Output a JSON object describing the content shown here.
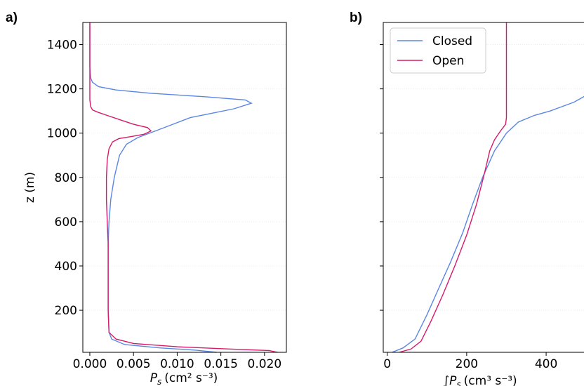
{
  "colors": {
    "closed": "#5b86e5",
    "open": "#d61a6a"
  },
  "chart_data": [
    {
      "panel": "a)",
      "type": "line",
      "xlabel_sym": "P",
      "xlabel_sub": "s",
      "xlabel_unit": "(cm² s⁻³)",
      "ylabel": "z (m)",
      "xlim": [
        -0.0008,
        0.0225
      ],
      "ylim": [
        10,
        1500
      ],
      "xticks": [
        0.0,
        0.005,
        0.01,
        0.015,
        0.02
      ],
      "xtick_labels": [
        "0.000",
        "0.005",
        "0.010",
        "0.015",
        "0.020"
      ],
      "yticks": [
        200,
        400,
        600,
        800,
        1000,
        1200,
        1400
      ],
      "ytick_labels": [
        "200",
        "400",
        "600",
        "800",
        "1000",
        "1200",
        "1400"
      ],
      "grid": true,
      "series": [
        {
          "name": "Closed",
          "points": [
            [
              0.0145,
              10
            ],
            [
              0.012,
              20
            ],
            [
              0.008,
              30
            ],
            [
              0.004,
              45
            ],
            [
              0.0025,
              70
            ],
            [
              0.0022,
              100
            ],
            [
              0.0021,
              200
            ],
            [
              0.0021,
              300
            ],
            [
              0.0021,
              400
            ],
            [
              0.0021,
              500
            ],
            [
              0.0022,
              600
            ],
            [
              0.0024,
              700
            ],
            [
              0.0028,
              800
            ],
            [
              0.0034,
              900
            ],
            [
              0.0042,
              950
            ],
            [
              0.0055,
              980
            ],
            [
              0.0075,
              1010
            ],
            [
              0.0095,
              1040
            ],
            [
              0.0115,
              1070
            ],
            [
              0.014,
              1090
            ],
            [
              0.0165,
              1110
            ],
            [
              0.0185,
              1135
            ],
            [
              0.0178,
              1150
            ],
            [
              0.013,
              1165
            ],
            [
              0.007,
              1180
            ],
            [
              0.003,
              1195
            ],
            [
              0.001,
              1210
            ],
            [
              0.0003,
              1230
            ],
            [
              0.0001,
              1250
            ],
            [
              0.0,
              1300
            ],
            [
              0.0,
              1500
            ]
          ]
        },
        {
          "name": "Open",
          "points": [
            [
              0.0215,
              10
            ],
            [
              0.0205,
              18
            ],
            [
              0.016,
              25
            ],
            [
              0.01,
              35
            ],
            [
              0.005,
              50
            ],
            [
              0.003,
              70
            ],
            [
              0.0022,
              100
            ],
            [
              0.0021,
              200
            ],
            [
              0.0021,
              300
            ],
            [
              0.0021,
              400
            ],
            [
              0.0021,
              500
            ],
            [
              0.002,
              600
            ],
            [
              0.0019,
              700
            ],
            [
              0.0019,
              800
            ],
            [
              0.002,
              880
            ],
            [
              0.0022,
              930
            ],
            [
              0.0026,
              960
            ],
            [
              0.0033,
              975
            ],
            [
              0.0048,
              985
            ],
            [
              0.0062,
              995
            ],
            [
              0.007,
              1010
            ],
            [
              0.0066,
              1025
            ],
            [
              0.005,
              1040
            ],
            [
              0.0035,
              1060
            ],
            [
              0.002,
              1080
            ],
            [
              0.0009,
              1095
            ],
            [
              0.0003,
              1105
            ],
            [
              0.0001,
              1120
            ],
            [
              0.0,
              1150
            ],
            [
              0.0,
              1500
            ]
          ]
        }
      ]
    },
    {
      "panel": "b)",
      "type": "line",
      "xlabel_sym": "∫P",
      "xlabel_sub": "s",
      "xlabel_unit": "(cm³ s⁻³)",
      "ylabel": "",
      "xlim": [
        -10,
        520
      ],
      "ylim": [
        10,
        1500
      ],
      "xticks": [
        0,
        200,
        400
      ],
      "xtick_labels": [
        "0",
        "200",
        "400"
      ],
      "yticks": [
        200,
        400,
        600,
        800,
        1000,
        1200,
        1400
      ],
      "ytick_labels": [],
      "grid": true,
      "legend": {
        "placement": "top-left",
        "entries": [
          "Closed",
          "Open"
        ]
      },
      "series": [
        {
          "name": "Closed",
          "points": [
            [
              12,
              10
            ],
            [
              40,
              30
            ],
            [
              70,
              70
            ],
            [
              100,
              180
            ],
            [
              130,
              300
            ],
            [
              160,
              420
            ],
            [
              190,
              550
            ],
            [
              215,
              680
            ],
            [
              240,
              800
            ],
            [
              270,
              920
            ],
            [
              300,
              1000
            ],
            [
              330,
              1050
            ],
            [
              370,
              1080
            ],
            [
              410,
              1100
            ],
            [
              440,
              1120
            ],
            [
              470,
              1140
            ],
            [
              500,
              1170
            ],
            [
              510,
              1200
            ],
            [
              515,
              1250
            ],
            [
              520,
              1300
            ]
          ]
        },
        {
          "name": "Open",
          "points": [
            [
              30,
              10
            ],
            [
              60,
              25
            ],
            [
              85,
              60
            ],
            [
              110,
              150
            ],
            [
              140,
              270
            ],
            [
              170,
              400
            ],
            [
              200,
              540
            ],
            [
              225,
              680
            ],
            [
              245,
              820
            ],
            [
              258,
              920
            ],
            [
              270,
              970
            ],
            [
              285,
              1010
            ],
            [
              298,
              1040
            ],
            [
              300,
              1070
            ],
            [
              300,
              1200
            ],
            [
              300,
              1500
            ]
          ]
        }
      ]
    }
  ]
}
